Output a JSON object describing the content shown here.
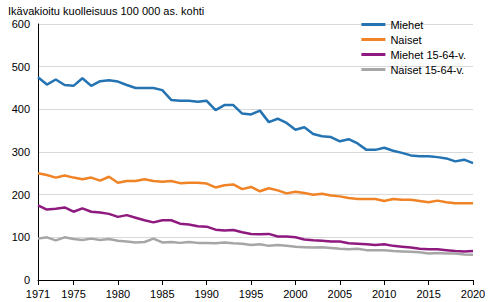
{
  "chart_data": {
    "type": "line",
    "y_label": "Ikävakioitu kuolleisuus 100 000 as. kohti",
    "x": [
      1971,
      1972,
      1973,
      1974,
      1975,
      1976,
      1977,
      1978,
      1979,
      1980,
      1981,
      1982,
      1983,
      1984,
      1985,
      1986,
      1987,
      1988,
      1989,
      1990,
      1991,
      1992,
      1993,
      1994,
      1995,
      1996,
      1997,
      1998,
      1999,
      2000,
      2001,
      2002,
      2003,
      2004,
      2005,
      2006,
      2007,
      2008,
      2009,
      2010,
      2011,
      2012,
      2013,
      2014,
      2015,
      2016,
      2017,
      2018,
      2019,
      2020
    ],
    "series": [
      {
        "name": "Miehet",
        "color": "#2473b2",
        "values": [
          475,
          458,
          470,
          457,
          455,
          473,
          455,
          466,
          468,
          465,
          457,
          450,
          450,
          450,
          445,
          422,
          420,
          420,
          418,
          420,
          398,
          410,
          410,
          390,
          388,
          397,
          370,
          378,
          368,
          352,
          358,
          342,
          337,
          335,
          325,
          330,
          320,
          305,
          305,
          310,
          303,
          298,
          292,
          290,
          290,
          288,
          285,
          278,
          282,
          274
        ]
      },
      {
        "name": "Naiset",
        "color": "#f08326",
        "values": [
          250,
          246,
          240,
          245,
          240,
          236,
          240,
          233,
          242,
          228,
          232,
          232,
          236,
          232,
          230,
          232,
          227,
          228,
          228,
          226,
          217,
          222,
          224,
          213,
          218,
          208,
          215,
          210,
          203,
          207,
          204,
          200,
          202,
          198,
          196,
          192,
          190,
          190,
          190,
          185,
          190,
          188,
          188,
          185,
          182,
          186,
          182,
          180,
          180,
          180
        ]
      },
      {
        "name": "Miehet 15-64-v.",
        "color": "#8f1a7f",
        "values": [
          175,
          165,
          167,
          170,
          160,
          168,
          160,
          158,
          155,
          148,
          152,
          146,
          140,
          135,
          140,
          140,
          132,
          130,
          126,
          125,
          118,
          116,
          117,
          112,
          108,
          107,
          108,
          102,
          102,
          100,
          95,
          93,
          92,
          90,
          90,
          86,
          85,
          84,
          82,
          84,
          80,
          78,
          76,
          73,
          72,
          72,
          70,
          68,
          67,
          68
        ]
      },
      {
        "name": "Naiset 15-64-v.",
        "color": "#a6a6a6",
        "values": [
          97,
          100,
          93,
          100,
          96,
          94,
          97,
          94,
          96,
          92,
          90,
          88,
          89,
          97,
          88,
          89,
          87,
          89,
          87,
          87,
          86,
          88,
          86,
          85,
          82,
          84,
          80,
          82,
          80,
          78,
          77,
          76,
          77,
          75,
          73,
          72,
          73,
          70,
          70,
          70,
          68,
          67,
          66,
          65,
          62,
          63,
          62,
          62,
          60,
          59
        ]
      }
    ],
    "xlim": [
      1971,
      2020
    ],
    "xticks": [
      1971,
      1975,
      1980,
      1985,
      1990,
      1995,
      2000,
      2005,
      2010,
      2015,
      2020
    ],
    "ylim": [
      0,
      600
    ],
    "yticks": [
      0,
      100,
      200,
      300,
      400,
      500,
      600
    ],
    "grid": true,
    "legend": "upper right"
  }
}
